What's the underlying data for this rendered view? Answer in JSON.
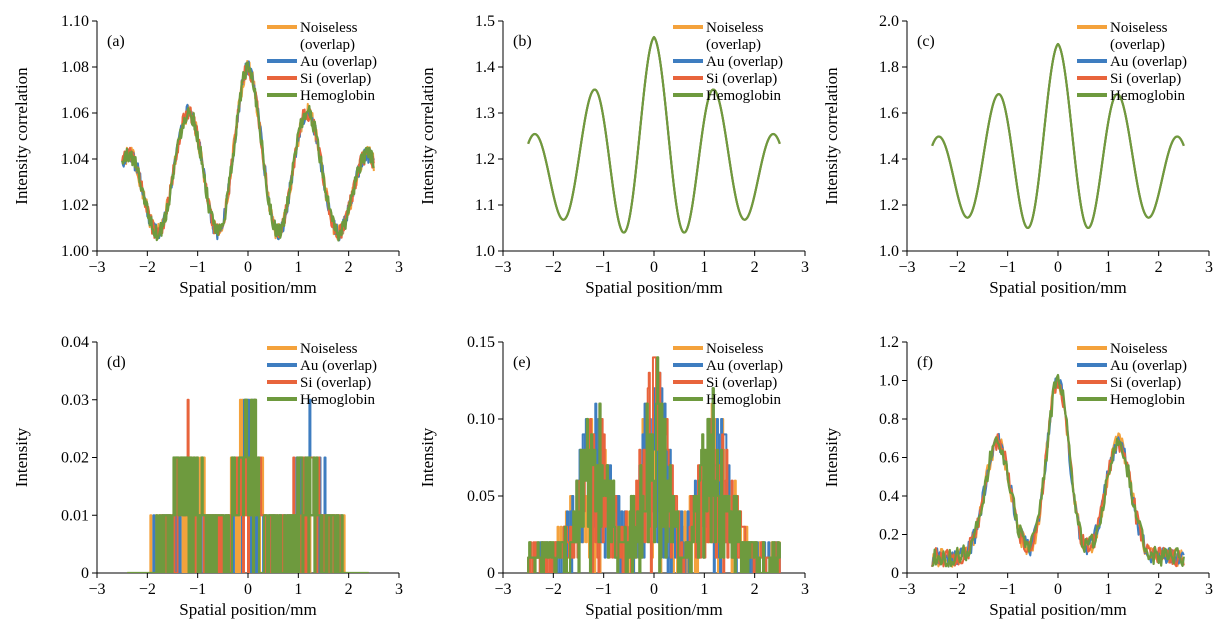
{
  "colors": {
    "noiseless": "#F4A23C",
    "au": "#3E7DC0",
    "si": "#E8643C",
    "hemoglobin": "#6E9A3E"
  },
  "chart_data": [
    {
      "panel": "(a)",
      "type": "line",
      "title": "",
      "xlabel": "Spatial position/mm",
      "ylabel": "Intensity correlation",
      "xlim": [
        -3,
        3
      ],
      "ylim": [
        1.0,
        1.1
      ],
      "xticks": [
        "−3",
        "−2",
        "−1",
        "0",
        "1",
        "2",
        "3"
      ],
      "yticks": [
        "1.00",
        "1.02",
        "1.04",
        "1.06",
        "1.08",
        "1.10"
      ],
      "legend": [
        "Noiseless (overlap)",
        "Au (overlap)",
        "Si (overlap)",
        "Hemoglobin"
      ],
      "legend_position": "top-right",
      "shape": {
        "kind": "correlation",
        "base": 1.0,
        "peak": 1.08,
        "side": 1.06,
        "edge": 1.04,
        "min": 1.008,
        "noise": 0.004,
        "range": [
          -2.5,
          2.5
        ]
      }
    },
    {
      "panel": "(b)",
      "type": "line",
      "title": "",
      "xlabel": "Spatial position/mm",
      "ylabel": "Intensity correlation",
      "xlim": [
        -3,
        3
      ],
      "ylim": [
        1.0,
        1.5
      ],
      "xticks": [
        "−3",
        "−2",
        "−1",
        "0",
        "1",
        "2",
        "3"
      ],
      "yticks": [
        "1.0",
        "1.1",
        "1.2",
        "1.3",
        "1.4",
        "1.5"
      ],
      "legend": [
        "Noiseless (overlap)",
        "Au (overlap)",
        "Si (overlap)",
        "Hemoglobin"
      ],
      "legend_position": "top-right",
      "shape": {
        "kind": "correlation",
        "peak": 1.465,
        "side": 1.35,
        "edge": 1.245,
        "min": 1.04,
        "min2": 1.068,
        "noise": 0.0,
        "range": [
          -2.5,
          2.5
        ]
      }
    },
    {
      "panel": "(c)",
      "type": "line",
      "title": "",
      "xlabel": "Spatial position/mm",
      "ylabel": "Intensity correlation",
      "xlim": [
        -3,
        3
      ],
      "ylim": [
        1.0,
        2.0
      ],
      "xticks": [
        "−3",
        "−2",
        "−1",
        "0",
        "1",
        "2",
        "3"
      ],
      "yticks": [
        "1.0",
        "1.2",
        "1.4",
        "1.6",
        "1.8",
        "2.0"
      ],
      "legend": [
        "Noiseless (overlap)",
        "Au (overlap)",
        "Si (overlap)",
        "Hemoglobin"
      ],
      "legend_position": "top-right",
      "shape": {
        "kind": "correlation",
        "peak": 1.9,
        "side": 1.68,
        "edge": 1.48,
        "min": 1.1,
        "min2": 1.145,
        "noise": 0.0,
        "range": [
          -2.5,
          2.5
        ]
      }
    },
    {
      "panel": "(d)",
      "type": "line",
      "title": "",
      "xlabel": "Spatial position/mm",
      "ylabel": "Intensity",
      "xlim": [
        -3,
        3
      ],
      "ylim": [
        0,
        0.04
      ],
      "xticks": [
        "−3",
        "−2",
        "−1",
        "0",
        "1",
        "2",
        "3"
      ],
      "yticks": [
        "0",
        "0.01",
        "0.02",
        "0.03",
        "0.04"
      ],
      "legend": [
        "Noiseless",
        "Au (overlap)",
        "Si (overlap)",
        "Hemoglobin"
      ],
      "legend_position": "top-right",
      "shape": {
        "kind": "quantized",
        "step": 0.01,
        "scale": 0.022,
        "range": [
          -2.4,
          2.4
        ]
      }
    },
    {
      "panel": "(e)",
      "type": "line",
      "title": "",
      "xlabel": "Spatial position/mm",
      "ylabel": "Intensity",
      "xlim": [
        -3,
        3
      ],
      "ylim": [
        0,
        0.15
      ],
      "xticks": [
        "−3",
        "−2",
        "−1",
        "0",
        "1",
        "2",
        "3"
      ],
      "yticks": [
        "0",
        "0.05",
        "0.10",
        "0.15"
      ],
      "legend": [
        "Noiseless",
        "Au (overlap)",
        "Si (overlap)",
        "Hemoglobin"
      ],
      "legend_position": "top-right",
      "shape": {
        "kind": "quantized",
        "step": 0.01,
        "scale": 0.1,
        "range": [
          -2.5,
          2.5
        ]
      }
    },
    {
      "panel": "(f)",
      "type": "line",
      "title": "",
      "xlabel": "Spatial position/mm",
      "ylabel": "Intensity",
      "xlim": [
        -3,
        3
      ],
      "ylim": [
        0,
        1.2
      ],
      "xticks": [
        "−3",
        "−2",
        "−1",
        "0",
        "1",
        "2",
        "3"
      ],
      "yticks": [
        "0",
        "0.2",
        "0.4",
        "0.6",
        "0.8",
        "1.0",
        "1.2"
      ],
      "legend": [
        "Noiseless",
        "Au (overlap)",
        "Si (overlap)",
        "Hemoglobin"
      ],
      "legend_position": "top-right",
      "shape": {
        "kind": "intensity",
        "scale": 0.92,
        "side": 0.6,
        "noise": 0.05,
        "range": [
          -2.5,
          2.5
        ]
      }
    }
  ]
}
